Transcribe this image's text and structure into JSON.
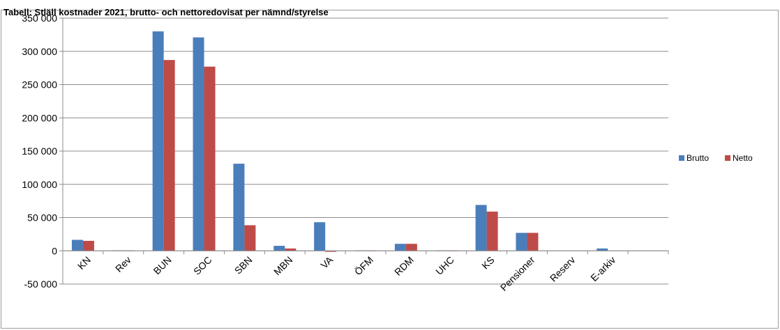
{
  "chart_data": {
    "type": "bar",
    "title": "Tabell: Stläll kostnader 2021, brutto- och nettoredovisat per nämnd/styrelse",
    "xlabel": "",
    "ylabel": "",
    "ylim": [
      -50000,
      350000
    ],
    "ytick_step": 50000,
    "yticks": [
      "350 000",
      "300 000",
      "250 000",
      "200 000",
      "150 000",
      "100 000",
      "50 000",
      "0",
      "-50 000"
    ],
    "grid": true,
    "legend_position": "right",
    "categories": [
      "KN",
      "Rev",
      "BUN",
      "SOC",
      "SBN",
      "MBN",
      "VA",
      "ÖFM",
      "RDM",
      "UHC",
      "KS",
      "Pensioner",
      "Reserv",
      "E-arkiv"
    ],
    "series": [
      {
        "name": "Brutto",
        "color": "#4a7ebb",
        "values": [
          16500,
          500,
          330000,
          321000,
          131000,
          7500,
          43000,
          500,
          10500,
          500,
          69000,
          27000,
          0,
          3500
        ]
      },
      {
        "name": "Netto",
        "color": "#be4b48",
        "values": [
          15000,
          500,
          287000,
          277000,
          38500,
          3500,
          -1500,
          500,
          10500,
          500,
          59000,
          27000,
          0,
          0
        ]
      }
    ]
  }
}
